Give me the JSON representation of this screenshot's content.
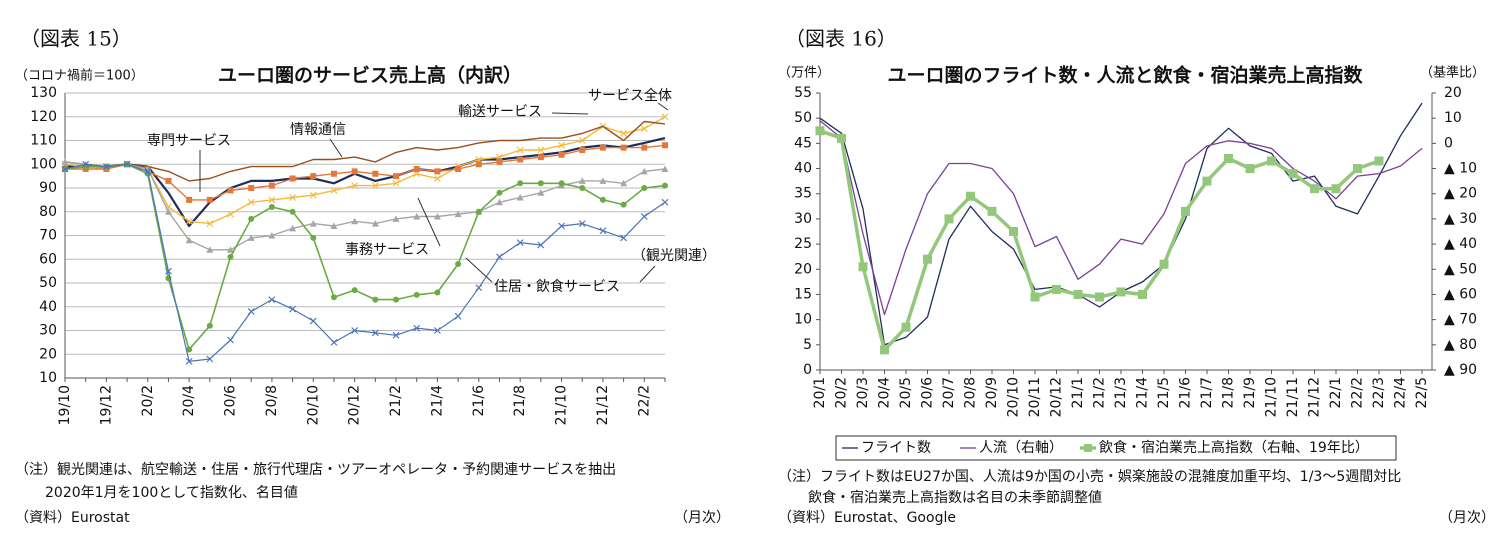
{
  "chart_data": [
    {
      "type": "line",
      "figure_label": "（図表 15）",
      "title": "ユーロ圏のサービス売上高（内訳）",
      "y_label": "（コロナ禍前＝100）",
      "x_unit": "（月次）",
      "notes": [
        "（注）観光関連は、航空輸送・住居・旅行代理店・ツアーオペレータ・予約関連サービスを抽出",
        "2020年1月を100として指数化、名目値"
      ],
      "source": "（資料）Eurostat",
      "categories": [
        "19/10",
        null,
        "19/12",
        null,
        "20/2",
        null,
        "20/4",
        null,
        "20/6",
        null,
        "20/8",
        null,
        "20/10",
        null,
        "20/12",
        null,
        "21/2",
        null,
        "21/4",
        null,
        "21/6",
        null,
        "21/8",
        null,
        "21/10",
        null,
        "21/12",
        null,
        "22/2",
        null
      ],
      "ylim": [
        10,
        130
      ],
      "yticks": [
        10,
        20,
        30,
        40,
        50,
        60,
        70,
        80,
        90,
        100,
        110,
        120,
        130
      ],
      "grid": true,
      "series": [
        {
          "name": "サービス全体",
          "color": "#1f2d5a",
          "marker": "none",
          "line_width": 2.2,
          "values": [
            99,
            99,
            99,
            100,
            99,
            88,
            74,
            84,
            90,
            93,
            93,
            94,
            94,
            92,
            96,
            93,
            95,
            98,
            97,
            99,
            102,
            102,
            103,
            104,
            105,
            107,
            108,
            107,
            109,
            111
          ]
        },
        {
          "name": "輸送サービス",
          "color": "#f5b93a",
          "marker": "x",
          "line_width": 1.4,
          "values": [
            100,
            99,
            98,
            100,
            98,
            82,
            76,
            75,
            79,
            84,
            85,
            86,
            87,
            89,
            91,
            91,
            92,
            96,
            94,
            99,
            102,
            103,
            106,
            106,
            108,
            110,
            116,
            113,
            115,
            120
          ]
        },
        {
          "name": "情報通信",
          "color": "#9a4e1c",
          "marker": "none",
          "line_width": 1.4,
          "values": [
            101,
            100,
            99,
            100,
            99,
            97,
            93,
            94,
            97,
            99,
            99,
            99,
            102,
            102,
            103,
            101,
            105,
            107,
            106,
            107,
            109,
            110,
            110,
            111,
            111,
            113,
            116,
            110,
            118,
            117
          ]
        },
        {
          "name": "専門サービス",
          "color": "#e4773a",
          "marker": "square",
          "line_width": 1.4,
          "values": [
            98,
            98,
            98,
            100,
            97,
            93,
            85,
            85,
            89,
            90,
            91,
            94,
            95,
            96,
            97,
            96,
            95,
            98,
            97,
            98,
            100,
            101,
            102,
            103,
            104,
            106,
            107,
            107,
            107,
            108
          ]
        },
        {
          "name": "事務サービス",
          "color": "#a6a6a6",
          "marker": "triangle",
          "line_width": 1.4,
          "values": [
            101,
            100,
            99,
            100,
            98,
            80,
            68,
            64,
            64,
            69,
            70,
            73,
            75,
            74,
            76,
            75,
            77,
            78,
            78,
            79,
            80,
            84,
            86,
            88,
            91,
            93,
            93,
            92,
            97,
            98
          ]
        },
        {
          "name": "住居・飲食サービス",
          "color": "#6aab46",
          "marker": "circle",
          "line_width": 1.6,
          "values": [
            98,
            99,
            99,
            100,
            96,
            52,
            22,
            32,
            61,
            77,
            82,
            80,
            69,
            44,
            47,
            43,
            43,
            45,
            46,
            58,
            80,
            88,
            92,
            92,
            92,
            90,
            85,
            83,
            90,
            91
          ]
        },
        {
          "name": "（観光関連）",
          "color": "#4a74b8",
          "marker": "x",
          "line_width": 1.2,
          "values": [
            98,
            100,
            99,
            100,
            97,
            55,
            17,
            18,
            26,
            38,
            43,
            39,
            34,
            25,
            30,
            29,
            28,
            31,
            30,
            36,
            48,
            61,
            67,
            66,
            74,
            75,
            72,
            69,
            78,
            84
          ]
        }
      ]
    },
    {
      "type": "line",
      "figure_label": "（図表 16）",
      "title": "ユーロ圏のフライト数・人流と飲食・宿泊業売上高指数",
      "y_label": "（万件）",
      "y2_label": "（基準比）",
      "x_unit": "（月次）",
      "notes": [
        "（注）フライト数はEU27か国、人流は9か国の小売・娯楽施設の混雑度加重平均、1/3～5週間対比",
        "飲食・宿泊業売上高指数は名目の未季節調整値"
      ],
      "source": "（資料）Eurostat、Google",
      "categories": [
        "20/1",
        "20/2",
        "20/3",
        "20/4",
        "20/5",
        "20/6",
        "20/7",
        "20/8",
        "20/9",
        "20/10",
        "20/11",
        "20/12",
        "21/1",
        "21/2",
        "21/3",
        "21/4",
        "21/5",
        "21/6",
        "21/7",
        "21/8",
        "21/9",
        "21/10",
        "21/11",
        "21/12",
        "22/1",
        "22/2",
        "22/3",
        "22/4",
        "22/5"
      ],
      "ylim": [
        0,
        55
      ],
      "yticks": [
        0,
        5,
        10,
        15,
        20,
        25,
        30,
        35,
        40,
        45,
        50,
        55
      ],
      "y2lim": [
        -90,
        20
      ],
      "y2ticks": [
        20,
        10,
        0,
        {
          "value": -10,
          "label": "▲ 10"
        },
        {
          "value": -20,
          "label": "▲ 20"
        },
        {
          "value": -30,
          "label": "▲ 30"
        },
        {
          "value": -40,
          "label": "▲ 40"
        },
        {
          "value": -50,
          "label": "▲ 50"
        },
        {
          "value": -60,
          "label": "▲ 60"
        },
        {
          "value": -70,
          "label": "▲ 70"
        },
        {
          "value": -80,
          "label": "▲ 80"
        },
        {
          "value": -90,
          "label": "▲ 90"
        }
      ],
      "grid": false,
      "series": [
        {
          "name": "フライト数",
          "color": "#1f2d5a",
          "marker": "none",
          "line_width": 1.3,
          "values": [
            50,
            47,
            32,
            5,
            6.5,
            10.5,
            26,
            32.5,
            27.5,
            24,
            16,
            16.5,
            15,
            12.5,
            15.5,
            17.5,
            21,
            30,
            44,
            48,
            44.5,
            43,
            37.5,
            38.5,
            32.5,
            31,
            38.5,
            46.5,
            53
          ]
        },
        {
          "name": "人流（右軸）",
          "color": "#7a3f9a",
          "marker": "none",
          "line_width": 1.3,
          "axis": "y2",
          "values": [
            9,
            2,
            -36,
            -68,
            -42,
            -20,
            -8,
            -8,
            -10,
            -20,
            -41,
            -37,
            -54,
            -48,
            -38,
            -40,
            -28,
            -8,
            -1,
            1,
            0,
            -2,
            -10,
            -15,
            -22,
            -13,
            -12,
            -9,
            -2
          ]
        },
        {
          "name": "飲食・宿泊業売上高指数（右軸、19年比）",
          "color": "#93c77a",
          "marker": "square",
          "line_width": 3.5,
          "axis": "y2",
          "values": [
            5,
            2,
            -49,
            -82,
            -73,
            -46,
            -30,
            -21,
            -27,
            -35,
            -61,
            -58,
            -60,
            -61,
            -59,
            -60,
            -48,
            -27,
            -15,
            -6,
            -10,
            -7,
            -12,
            -18,
            -18,
            -10,
            -7,
            null,
            null
          ]
        }
      ]
    }
  ]
}
